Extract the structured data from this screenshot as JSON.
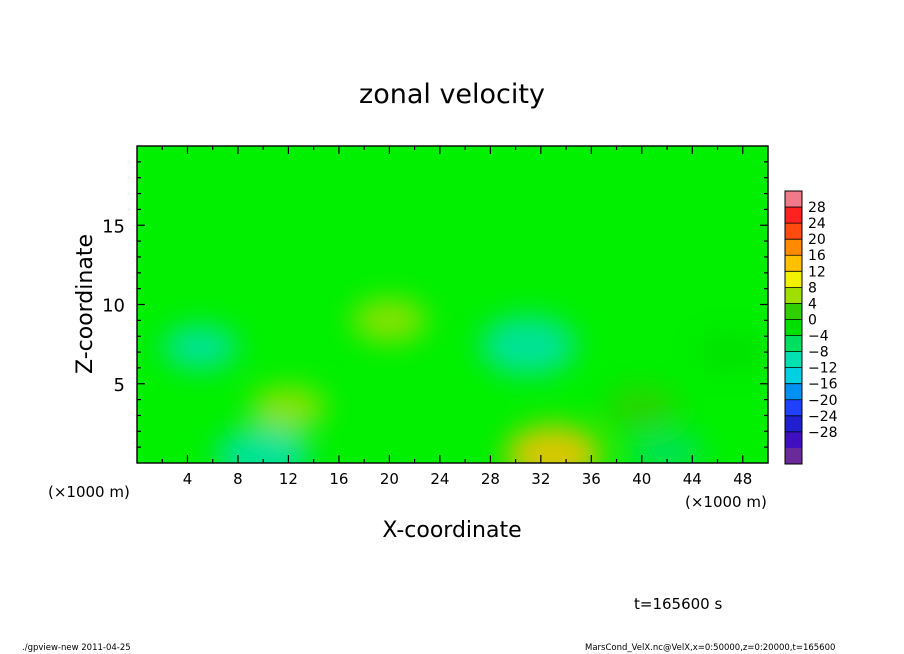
{
  "chart_data": {
    "type": "heatmap",
    "title": "zonal velocity",
    "xlabel": "X-coordinate",
    "ylabel": "Z-coordinate",
    "x_unit": "(×1000 m)",
    "y_unit": "(×1000 m)",
    "x_range": [
      0,
      50
    ],
    "y_range": [
      0,
      20
    ],
    "x_ticks": [
      4,
      8,
      12,
      16,
      20,
      24,
      28,
      32,
      36,
      40,
      44,
      48
    ],
    "y_ticks": [
      5,
      10,
      15
    ],
    "colorbar": {
      "labels": [
        28,
        24,
        20,
        16,
        12,
        8,
        4,
        0,
        -4,
        -8,
        -12,
        -16,
        -20,
        -24,
        -28
      ],
      "colors": [
        "#f07a8a",
        "#ff2020",
        "#ff4a10",
        "#ff8a00",
        "#ffc000",
        "#f2f200",
        "#a0e000",
        "#30d000",
        "#00e000",
        "#00e060",
        "#00e0b0",
        "#00d0e0",
        "#0090f0",
        "#2040ff",
        "#2020d0",
        "#4010c0",
        "#6a2a9a"
      ]
    },
    "grid": false,
    "features": [
      {
        "x": 5,
        "z": 7.3,
        "value": -9
      },
      {
        "x": 31,
        "z": 7.4,
        "value": -12
      },
      {
        "x": 10,
        "z": 0.4,
        "value": -10
      },
      {
        "x": 42,
        "z": 0.6,
        "value": -8
      },
      {
        "x": 20,
        "z": 9,
        "value": 5
      },
      {
        "x": 33,
        "z": 0.5,
        "value": 12
      },
      {
        "x": 12,
        "z": 3.5,
        "value": 4
      },
      {
        "x": 40,
        "z": 3.5,
        "value": 3
      },
      {
        "x": 47,
        "z": 7,
        "value": -3
      }
    ],
    "annotation": "t=165600 s"
  },
  "footer": {
    "left": "./gpview-new  2011-04-25",
    "right": "MarsCond_VelX.nc@VelX,x=0:50000,z=0:20000,t=165600"
  },
  "colors": {
    "background": "#00f000"
  }
}
